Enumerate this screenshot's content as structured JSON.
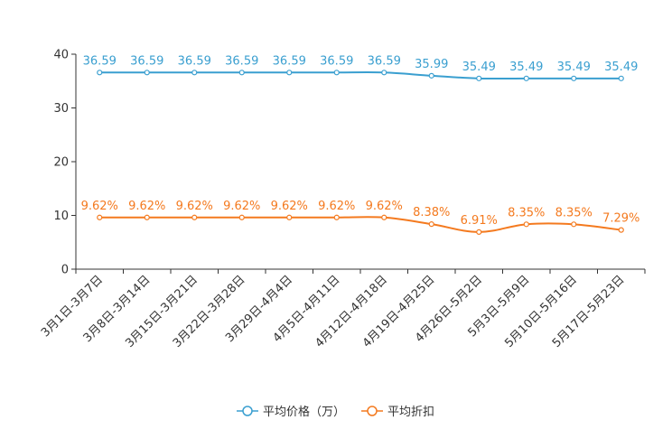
{
  "chart_data": {
    "type": "line",
    "title": "",
    "xlabel": "",
    "ylabel": "",
    "ylim": [
      0,
      40
    ],
    "yticks": [
      0,
      10,
      20,
      30,
      40
    ],
    "categories": [
      "3月1日-3月7日",
      "3月8日-3月14日",
      "3月15日-3月21日",
      "3月22日-3月28日",
      "3月29日-4月4日",
      "4月5日-4月11日",
      "4月12日-4月18日",
      "4月19日-4月25日",
      "4月26日-5月2日",
      "5月3日-5月9日",
      "5月10日-5月16日",
      "5月17日-5月23日"
    ],
    "series": [
      {
        "name": "平均价格（万）",
        "color": "#3a9fd0",
        "values": [
          36.59,
          36.59,
          36.59,
          36.59,
          36.59,
          36.59,
          36.59,
          35.99,
          35.49,
          35.49,
          35.49,
          35.49
        ],
        "labels": [
          "36.59",
          "36.59",
          "36.59",
          "36.59",
          "36.59",
          "36.59",
          "36.59",
          "35.99",
          "35.49",
          "35.49",
          "35.49",
          "35.49"
        ]
      },
      {
        "name": "平均折扣",
        "color": "#f47a1f",
        "values": [
          9.62,
          9.62,
          9.62,
          9.62,
          9.62,
          9.62,
          9.62,
          8.38,
          6.91,
          8.35,
          8.35,
          7.29
        ],
        "labels": [
          "9.62%",
          "9.62%",
          "9.62%",
          "9.62%",
          "9.62%",
          "9.62%",
          "9.62%",
          "8.38%",
          "6.91%",
          "8.35%",
          "8.35%",
          "7.29%"
        ]
      }
    ],
    "legend": "bottom-center",
    "grid": false
  }
}
